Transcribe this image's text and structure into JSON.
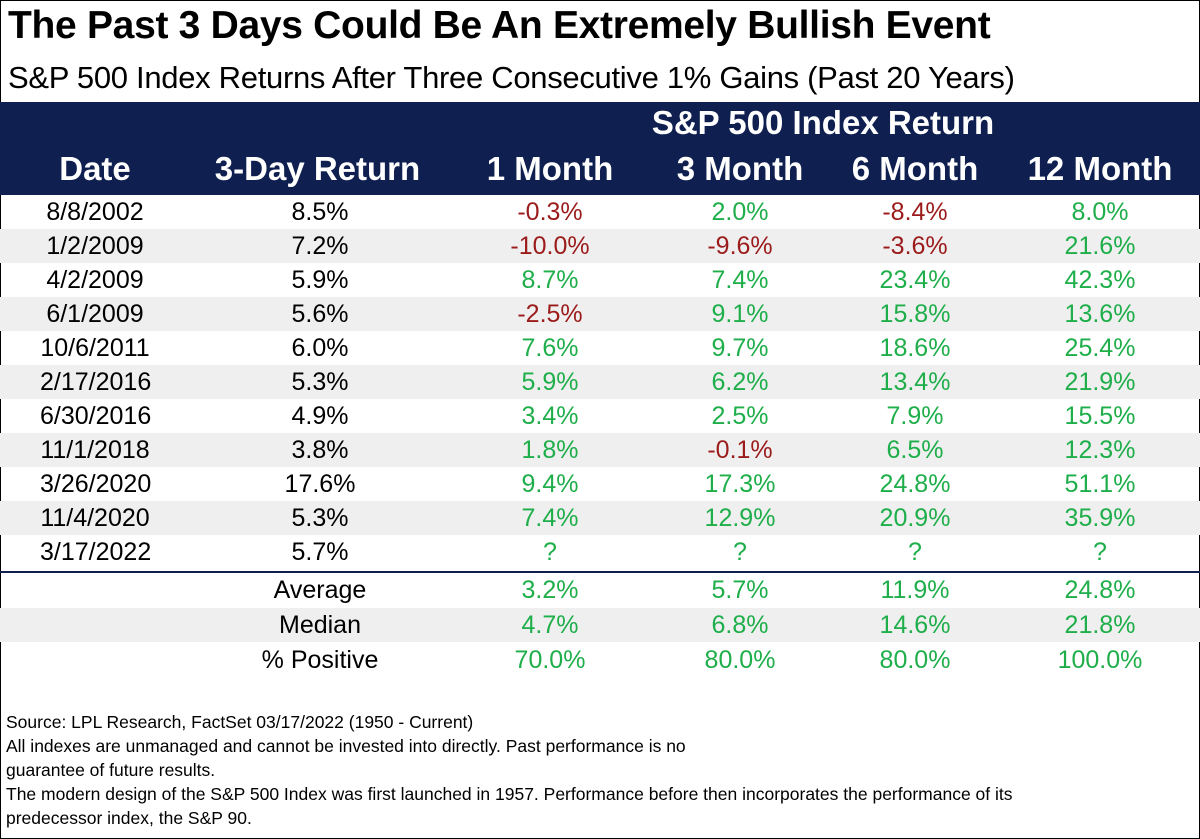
{
  "title": "The Past 3 Days Could Be An Extremely Bullish Event",
  "subtitle": "S&P 500 Index Returns After Three Consecutive 1% Gains (Past 20 Years)",
  "colors": {
    "header_bg": "#0e1f50",
    "positive": "#1eae4a",
    "negative": "#9b1b1b",
    "stripe": "#efefef"
  },
  "chart_data": {
    "type": "table",
    "group_header": "S&P 500 Index Return",
    "columns": [
      "Date",
      "3-Day Return",
      "1 Month",
      "3 Month",
      "6 Month",
      "12 Month"
    ],
    "rows": [
      {
        "date": "8/8/2002",
        "three_day": "8.5%",
        "m1": "-0.3%",
        "m3": "2.0%",
        "m6": "-8.4%",
        "m12": "8.0%"
      },
      {
        "date": "1/2/2009",
        "three_day": "7.2%",
        "m1": "-10.0%",
        "m3": "-9.6%",
        "m6": "-3.6%",
        "m12": "21.6%"
      },
      {
        "date": "4/2/2009",
        "three_day": "5.9%",
        "m1": "8.7%",
        "m3": "7.4%",
        "m6": "23.4%",
        "m12": "42.3%"
      },
      {
        "date": "6/1/2009",
        "three_day": "5.6%",
        "m1": "-2.5%",
        "m3": "9.1%",
        "m6": "15.8%",
        "m12": "13.6%"
      },
      {
        "date": "10/6/2011",
        "three_day": "6.0%",
        "m1": "7.6%",
        "m3": "9.7%",
        "m6": "18.6%",
        "m12": "25.4%"
      },
      {
        "date": "2/17/2016",
        "three_day": "5.3%",
        "m1": "5.9%",
        "m3": "6.2%",
        "m6": "13.4%",
        "m12": "21.9%"
      },
      {
        "date": "6/30/2016",
        "three_day": "4.9%",
        "m1": "3.4%",
        "m3": "2.5%",
        "m6": "7.9%",
        "m12": "15.5%"
      },
      {
        "date": "11/1/2018",
        "three_day": "3.8%",
        "m1": "1.8%",
        "m3": "-0.1%",
        "m6": "6.5%",
        "m12": "12.3%"
      },
      {
        "date": "3/26/2020",
        "three_day": "17.6%",
        "m1": "9.4%",
        "m3": "17.3%",
        "m6": "24.8%",
        "m12": "51.1%"
      },
      {
        "date": "11/4/2020",
        "three_day": "5.3%",
        "m1": "7.4%",
        "m3": "12.9%",
        "m6": "20.9%",
        "m12": "35.9%"
      },
      {
        "date": "3/17/2022",
        "three_day": "5.7%",
        "m1": "?",
        "m3": "?",
        "m6": "?",
        "m12": "?"
      }
    ],
    "summary": [
      {
        "label": "Average",
        "m1": "3.2%",
        "m3": "5.7%",
        "m6": "11.9%",
        "m12": "24.8%"
      },
      {
        "label": "Median",
        "m1": "4.7%",
        "m3": "6.8%",
        "m6": "14.6%",
        "m12": "21.8%"
      },
      {
        "label": "% Positive",
        "m1": "70.0%",
        "m3": "80.0%",
        "m6": "80.0%",
        "m12": "100.0%"
      }
    ]
  },
  "notes": {
    "source": "Source: LPL Research, FactSet 03/17/2022 (1950 - Current)",
    "disclaimer_1": "All indexes are unmanaged and cannot be invested into directly. Past performance is no",
    "disclaimer_2": "guarantee of future results.",
    "disclaimer_3": "The modern design of the S&P 500 Index was first launched in 1957. Performance before then incorporates the performance of its",
    "disclaimer_4": "predecessor index, the S&P 90."
  }
}
